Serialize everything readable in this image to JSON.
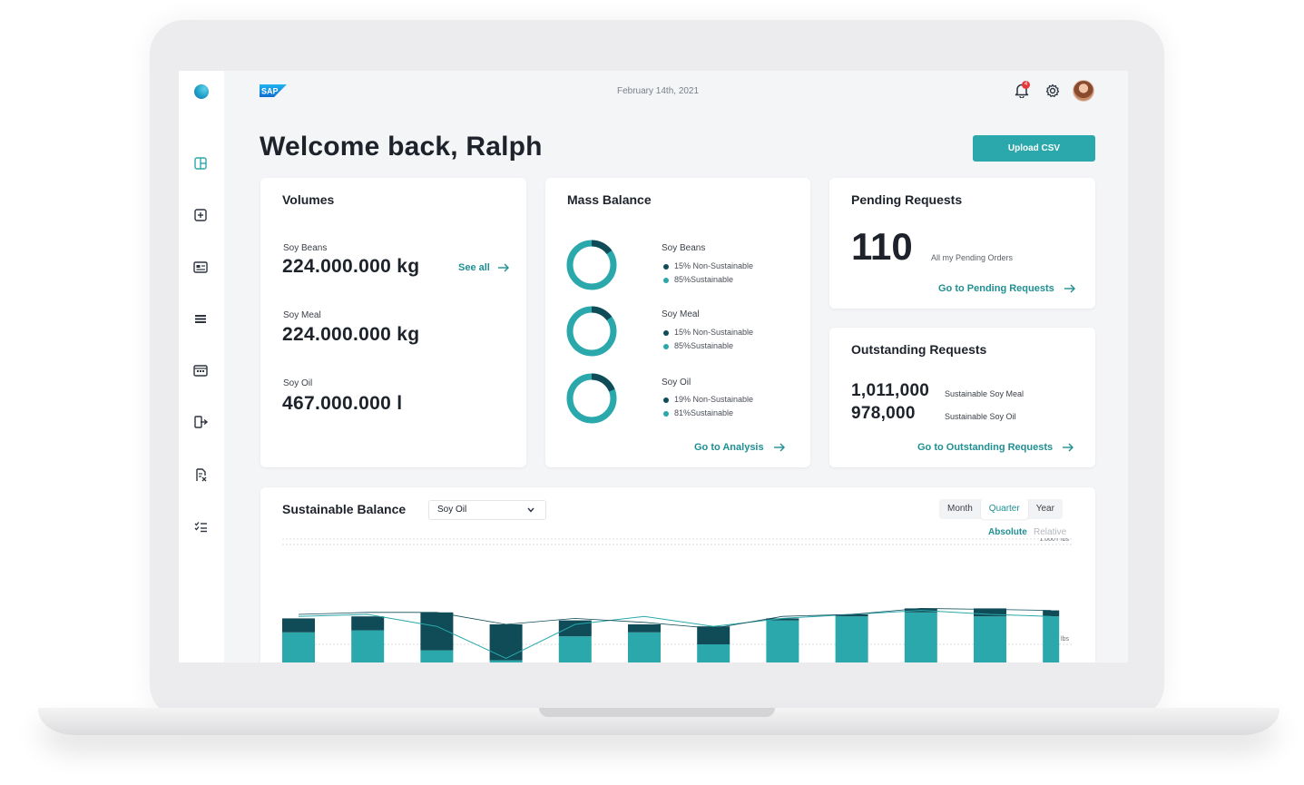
{
  "header": {
    "logo_text": "SAP",
    "date": "February 14th, 2021",
    "notification_count": "4"
  },
  "sidebar": {
    "items": [
      "grid-icon",
      "add-box-icon",
      "id-card-icon",
      "list-icon",
      "calendar-icon",
      "export-icon",
      "document-check-icon",
      "checklist-icon"
    ]
  },
  "welcome": "Welcome back, Ralph",
  "upload_button": "Upload CSV",
  "volumes": {
    "title": "Volumes",
    "items": [
      {
        "label": "Soy Beans",
        "value": "224.000.000 kg"
      },
      {
        "label": "Soy Meal",
        "value": "224.000.000 kg"
      },
      {
        "label": "Soy Oil",
        "value": "467.000.000 l"
      }
    ],
    "see_all": "See all"
  },
  "mass_balance": {
    "title": "Mass Balance",
    "items": [
      {
        "label": "Soy Beans",
        "non_sustainable": "15% Non-Sustainable",
        "sustainable": "85%Sustainable",
        "non_sustainable_pct": 15
      },
      {
        "label": "Soy Meal",
        "non_sustainable": "15% Non-Sustainable",
        "sustainable": "85%Sustainable",
        "non_sustainable_pct": 15
      },
      {
        "label": "Soy Oil",
        "non_sustainable": "19% Non-Sustainable",
        "sustainable": "81%Sustainable",
        "non_sustainable_pct": 19
      }
    ],
    "link": "Go to Analysis"
  },
  "pending": {
    "title": "Pending Requests",
    "count": "110",
    "caption": "All my Pending Orders",
    "link": "Go to Pending Requests"
  },
  "outstanding": {
    "title": "Outstanding Requests",
    "rows": [
      {
        "value": "1,011,000",
        "label": "Sustainable Soy Meal"
      },
      {
        "value": "978,000",
        "label": "Sustainable Soy Oil"
      }
    ],
    "link": "Go to Outstanding Requests"
  },
  "sustainable_balance": {
    "title": "Sustainable Balance",
    "select_value": "Soy Oil",
    "periods": [
      "Month",
      "Quarter",
      "Year"
    ],
    "active_period": "Quarter",
    "modes": [
      "Absolute",
      "Relative"
    ],
    "active_mode": "Absolute"
  },
  "colors": {
    "accent": "#2aa8ab",
    "dark": "#0f4c58",
    "link": "#1f8f92"
  },
  "chart_data": {
    "type": "bar",
    "y_tick_labels": [
      "1.000T lbs",
      "500T lbs"
    ],
    "y_ticks": [
      1000,
      500
    ],
    "ylim": [
      0,
      1000
    ],
    "units": "T lbs",
    "series": [
      {
        "values": [
          560,
          570,
          470,
          420,
          540,
          560,
          500,
          620,
          640,
          660,
          640,
          640
        ]
      },
      {
        "values": [
          70,
          70,
          190,
          180,
          80,
          40,
          90,
          10,
          10,
          20,
          40,
          30
        ]
      }
    ],
    "line_values": [
      640,
      650,
      590,
      430,
      600,
      640,
      590,
      630,
      650,
      670,
      650,
      640
    ],
    "line2_values": [
      650,
      660,
      660,
      600,
      630,
      610,
      580,
      640,
      650,
      680,
      675,
      670
    ]
  }
}
